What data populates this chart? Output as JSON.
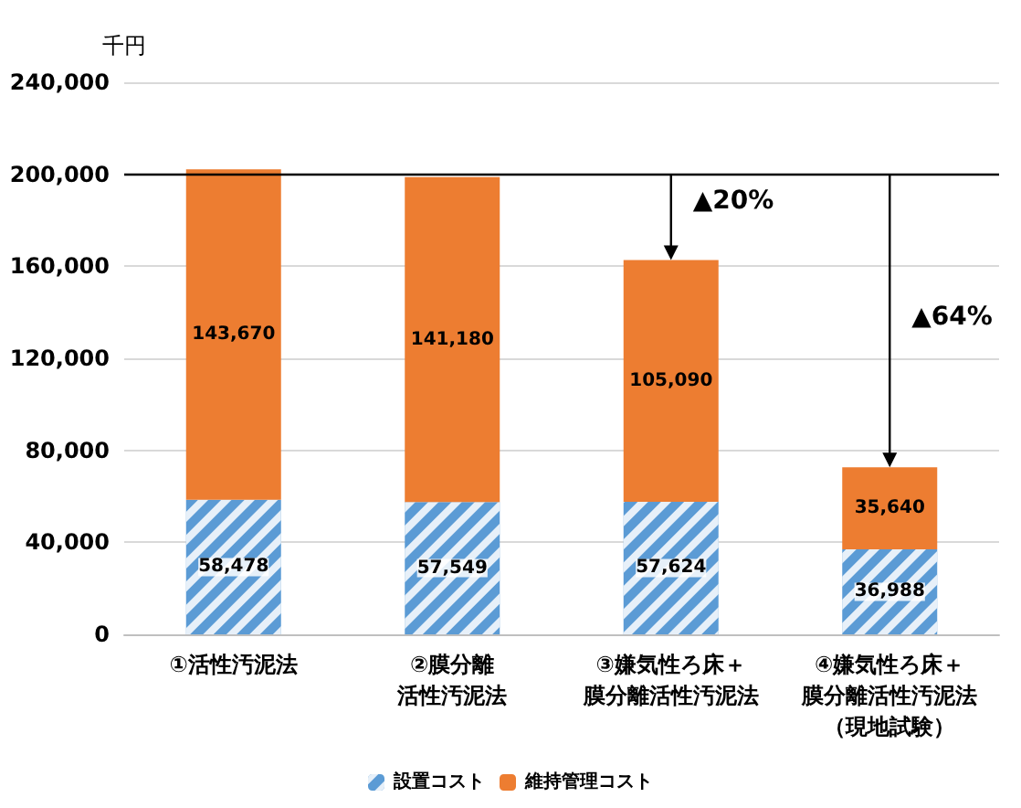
{
  "chart_data": {
    "type": "bar",
    "ylabel": "千円",
    "categories": [
      "①活性汚泥法",
      "②膜分離活性汚泥法",
      "③嫌気性ろ床＋膜分離活性汚泥法",
      "④嫌気性ろ床＋膜分離活性汚泥法（現地試験）"
    ],
    "series": [
      {
        "name": "設置コスト",
        "color": "#5b9bd5",
        "values": [
          58478,
          57549,
          57624,
          36988
        ],
        "value_labels": [
          "58,478",
          "57,549",
          "57,624",
          "36,988"
        ]
      },
      {
        "name": "維持管理コスト",
        "color": "#ed7d31",
        "values": [
          143670,
          141180,
          105090,
          35640
        ],
        "value_labels": [
          "143,670",
          "141,180",
          "105,090",
          "35,640"
        ]
      }
    ],
    "stacked": true,
    "ylim": [
      0,
      240000
    ],
    "yticks": [
      0,
      {
        "value": 40000,
        "label": "40,000"
      },
      {
        "value": 80000,
        "label": "80,000"
      },
      {
        "value": 120000,
        "label": "120,000"
      },
      {
        "value": 160000,
        "label": "160,000"
      },
      {
        "value": 200000,
        "label": "200,000"
      },
      {
        "value": 240000,
        "label": "240,000"
      }
    ],
    "grid": "y",
    "legend": "bottom",
    "ref_lines": [
      {
        "axis": "y",
        "value": 200000,
        "color": "#000000"
      }
    ],
    "annotations": [
      "▲20%",
      "▲64%"
    ]
  }
}
